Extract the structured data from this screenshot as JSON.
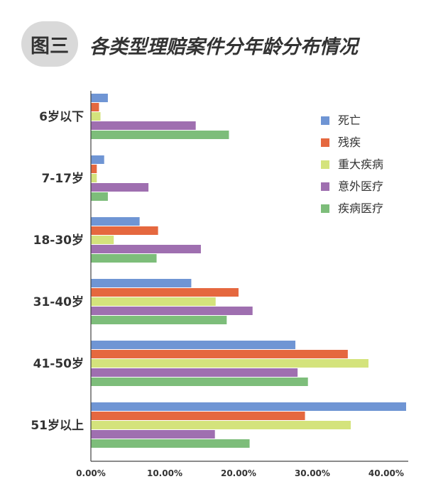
{
  "header": {
    "badge": "图三",
    "title": "各类型理赔案件分年龄分布情况"
  },
  "chart_data": {
    "type": "bar",
    "orientation": "horizontal",
    "title": "各类型理赔案件分年龄分布情况",
    "categories": [
      "6岁以下",
      "7-17岁",
      "18-30岁",
      "31-40岁",
      "41-50岁",
      "51岁以上"
    ],
    "series": [
      {
        "name": "死亡",
        "color": "#6f95d4",
        "values": [
          2.3,
          1.8,
          6.6,
          13.6,
          27.7,
          42.7
        ]
      },
      {
        "name": "残疾",
        "color": "#e5683f",
        "values": [
          1.1,
          0.8,
          9.1,
          20.0,
          34.8,
          29.0
        ]
      },
      {
        "name": "重大疾病",
        "color": "#d4e37c",
        "values": [
          1.3,
          0.8,
          3.1,
          16.9,
          37.6,
          35.2
        ]
      },
      {
        "name": "意外医疗",
        "color": "#9f6fb0",
        "values": [
          14.2,
          7.8,
          14.9,
          21.9,
          28.0,
          16.8
        ]
      },
      {
        "name": "疾病医疗",
        "color": "#7dbd7a",
        "values": [
          18.7,
          2.3,
          8.9,
          18.4,
          29.4,
          21.5
        ]
      }
    ],
    "xlim": [
      0,
      42.7
    ],
    "xticks": [
      "0.00%",
      "10.00%",
      "20.00%",
      "30.00%",
      "40.00%"
    ],
    "xtick_values": [
      0,
      10,
      20,
      30,
      40
    ],
    "grid": false,
    "legend_position": "right"
  }
}
